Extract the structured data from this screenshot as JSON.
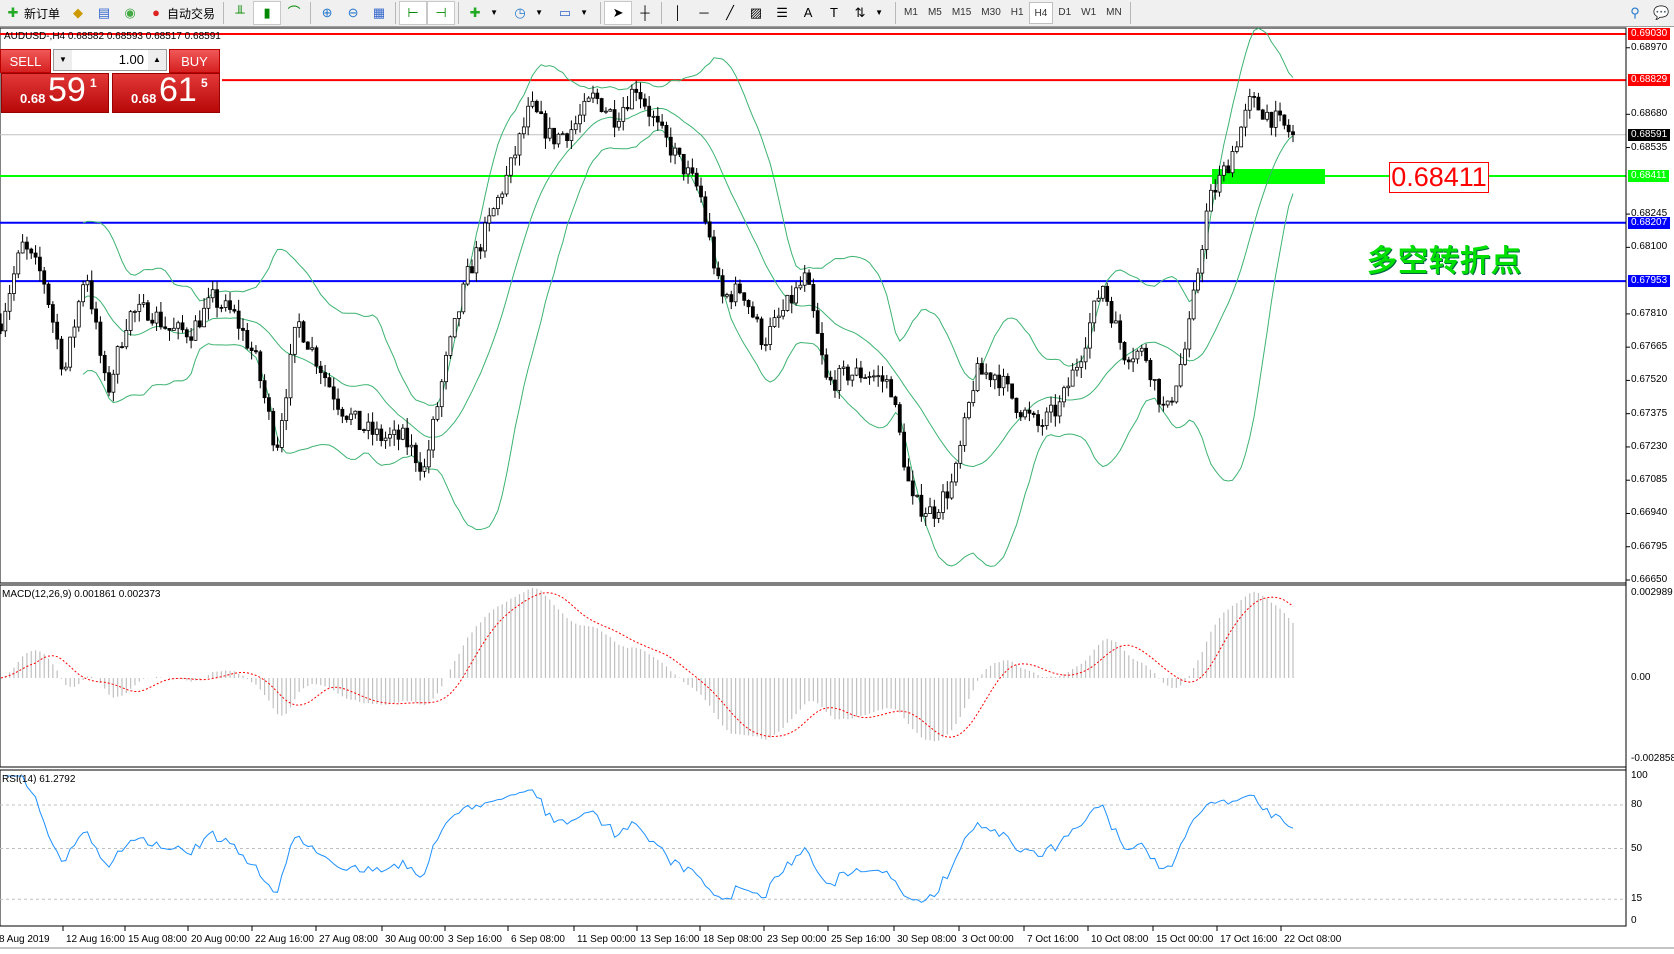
{
  "toolbar": {
    "new_order": "新订单",
    "auto_trading": "自动交易",
    "timeframes": [
      "M1",
      "M5",
      "M15",
      "M30",
      "H1",
      "H4",
      "D1",
      "W1",
      "MN"
    ],
    "active_timeframe": "H4"
  },
  "chart_header": "AUDUSD-,H4  0.68582 0.68593 0.68517 0.68591",
  "trade_panel": {
    "sell": "SELL",
    "buy": "BUY",
    "volume": "1.00",
    "bid": {
      "small": "0.68",
      "large": "59",
      "pip": "1"
    },
    "ask": {
      "small": "0.68",
      "large": "61",
      "pip": "5"
    }
  },
  "colors": {
    "up_red": "#ff0000",
    "green": "#00ff00",
    "blue": "#0000ff",
    "band": "#3cb371",
    "rsi": "#1e90ff",
    "signal": "#ff0000",
    "hist": "#c0c0c0"
  },
  "price_axis": {
    "max": 0.6903,
    "min": 0.6665,
    "ticks": [
      "0.68970",
      "0.68680",
      "0.68535",
      "0.68245",
      "0.68100",
      "0.67810",
      "0.67665",
      "0.67520",
      "0.67375",
      "0.67230",
      "0.67085",
      "0.66940",
      "0.66795",
      "0.66650"
    ]
  },
  "levels": [
    {
      "price": 0.6903,
      "label": "0.69030",
      "color": "#ff0000"
    },
    {
      "price": 0.68829,
      "label": "0.68829",
      "color": "#ff0000"
    },
    {
      "price": 0.68591,
      "label": "0.68591",
      "color": "#000000"
    },
    {
      "price": 0.68411,
      "label": "0.68411",
      "color": "#00ff00"
    },
    {
      "price": 0.68207,
      "label": "0.68207",
      "color": "#0000ff"
    },
    {
      "price": 0.67953,
      "label": "0.67953",
      "color": "#0000ff"
    }
  ],
  "annotation": {
    "price_label": "0.68411",
    "text": "多空转折点"
  },
  "macd": {
    "label": "MACD(12,26,9) 0.001861 0.002373",
    "max": 0.002989,
    "min": -0.002858,
    "ticks": [
      "0.002989",
      "0.00",
      "-0.002858"
    ]
  },
  "rsi": {
    "label": "RSI(14) 61.2792",
    "ticks": [
      "100",
      "80",
      "50",
      "15",
      "0"
    ]
  },
  "time_axis": [
    "8 Aug 2019",
    "12 Aug 16:00",
    "15 Aug 08:00",
    "20 Aug 00:00",
    "22 Aug 16:00",
    "27 Aug 08:00",
    "30 Aug 00:00",
    "3 Sep 16:00",
    "6 Sep 08:00",
    "11 Sep 00:00",
    "13 Sep 16:00",
    "18 Sep 08:00",
    "23 Sep 00:00",
    "25 Sep 16:00",
    "30 Sep 08:00",
    "3 Oct 00:00",
    "7 Oct 16:00",
    "10 Oct 08:00",
    "15 Oct 00:00",
    "17 Oct 16:00",
    "22 Oct 08:00"
  ],
  "chart_data": {
    "type": "candlestick",
    "symbol": "AUDUSD-",
    "timeframe": "H4",
    "approx_closes": [
      0.67781,
      0.68107,
      0.67968,
      0.67549,
      0.68014,
      0.67456,
      0.67805,
      0.67828,
      0.67735,
      0.67735,
      0.67875,
      0.67805,
      0.67619,
      0.67223,
      0.67781,
      0.67595,
      0.67409,
      0.67316,
      0.67269,
      0.67269,
      0.6713,
      0.67595,
      0.67968,
      0.682,
      0.68433,
      0.68713,
      0.68573,
      0.68619,
      0.68759,
      0.68666,
      0.68806,
      0.68619,
      0.6848,
      0.6834,
      0.67875,
      0.67921,
      0.67688,
      0.67828,
      0.67968,
      0.67502,
      0.67549,
      0.67549,
      0.67502,
      0.6699,
      0.66944,
      0.67083,
      0.67549,
      0.67549,
      0.67409,
      0.67316,
      0.67409,
      0.67642,
      0.67945,
      0.67642,
      0.67642,
      0.67363,
      0.67688,
      0.68294,
      0.6848,
      0.68736,
      0.68666,
      0.68591
    ],
    "indicators": [
      "Bollinger Bands(20,2)",
      "MACD(12,26,9)",
      "RSI(14)"
    ]
  }
}
